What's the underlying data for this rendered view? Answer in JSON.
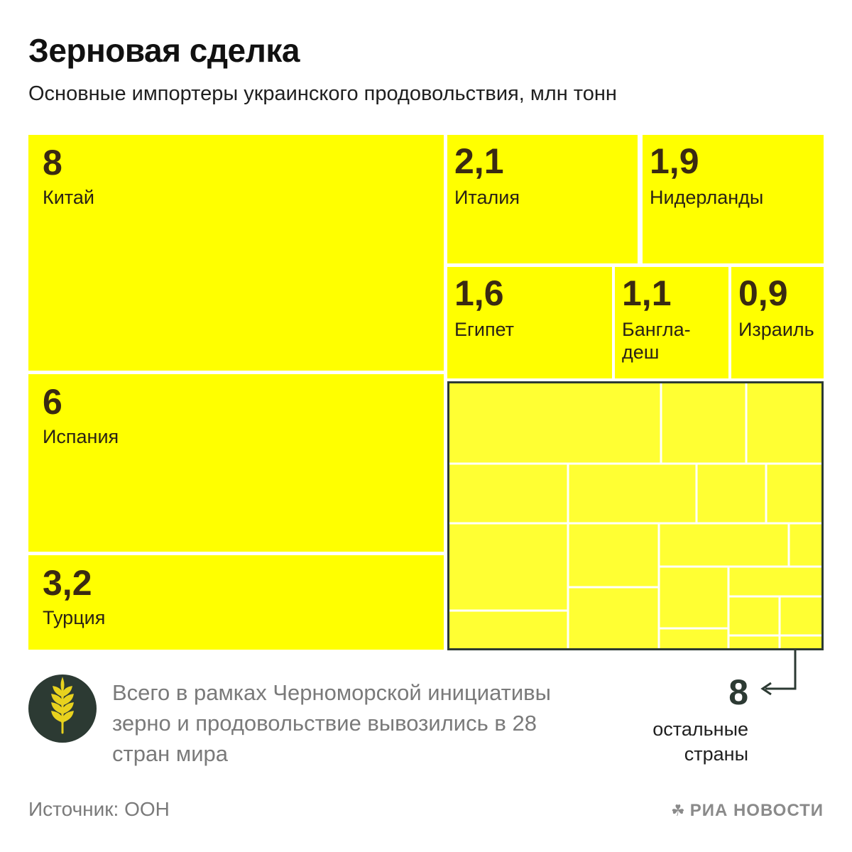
{
  "title": "Зерновая сделка",
  "subtitle": "Основные импортеры украинского продовольствия, млн тонн",
  "chart_data": {
    "type": "treemap",
    "title": "Зерновая сделка",
    "subtitle": "Основные импортеры украинского продовольствия, млн тонн",
    "unit": "млн тонн",
    "items": [
      {
        "label": "Китай",
        "value": 8,
        "value_text": "8"
      },
      {
        "label": "Испания",
        "value": 6,
        "value_text": "6"
      },
      {
        "label": "Турция",
        "value": 3.2,
        "value_text": "3,2"
      },
      {
        "label": "Италия",
        "value": 2.1,
        "value_text": "2,1"
      },
      {
        "label": "Нидерланды",
        "value": 1.9,
        "value_text": "1,9"
      },
      {
        "label": "Египет",
        "value": 1.6,
        "value_text": "1,6"
      },
      {
        "label": "Банглa-\nдеш",
        "value": 1.1,
        "value_text": "1,1"
      },
      {
        "label": "Израиль",
        "value": 0.9,
        "value_text": "0,9"
      }
    ],
    "others": {
      "label": "остальные\nстраны",
      "value": 8,
      "value_text": "8"
    },
    "colors": {
      "tile": "#ffff00",
      "others_tile": "#ffff33",
      "frame": "#2c3a33",
      "value_text": "#3a2a12"
    }
  },
  "note": "Всего в рамках Черноморской инициативы зерно и продовольствие вывозились в 28 стран мира",
  "badge_icon": "wheat-icon",
  "source": "Источник: ООН",
  "brand": "РИА НОВОСТИ",
  "brand_icon": "ria-logo-icon"
}
